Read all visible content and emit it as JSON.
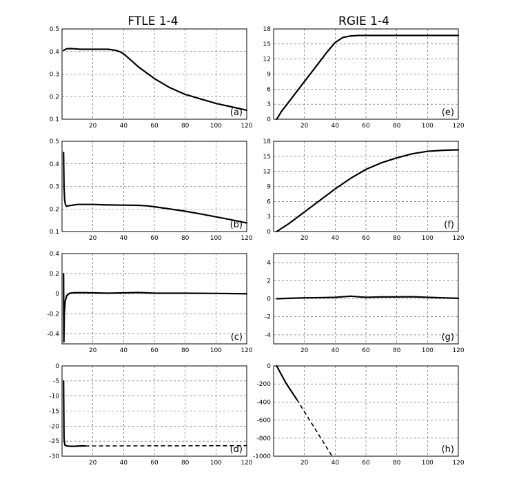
{
  "column_titles": [
    "FTLE 1-4",
    "RGIE 1-4"
  ],
  "chart_data": [
    {
      "type": "line",
      "panel_label": "(a)",
      "xlim": [
        0,
        120
      ],
      "ylim": [
        0.1,
        0.5
      ],
      "xticks": [
        20,
        40,
        60,
        80,
        100,
        120
      ],
      "yticks": [
        0.1,
        0.2,
        0.3,
        0.4,
        0.5
      ],
      "ytick_labels": [
        "0.1",
        "0.2",
        "0.3",
        "0.4",
        "0.5"
      ],
      "series": [
        {
          "x": [
            1,
            3,
            5,
            8,
            12,
            20,
            30,
            35,
            38,
            40,
            45,
            50,
            60,
            70,
            80,
            90,
            100,
            110,
            120
          ],
          "y": [
            0.405,
            0.412,
            0.413,
            0.412,
            0.41,
            0.41,
            0.41,
            0.405,
            0.398,
            0.39,
            0.36,
            0.33,
            0.28,
            0.24,
            0.21,
            0.19,
            0.17,
            0.155,
            0.14
          ]
        }
      ]
    },
    {
      "type": "line",
      "panel_label": "(e)",
      "xlim": [
        0,
        120
      ],
      "ylim": [
        0,
        18
      ],
      "xticks": [
        20,
        40,
        60,
        80,
        100,
        120
      ],
      "yticks": [
        0,
        3,
        6,
        9,
        12,
        15,
        18
      ],
      "ytick_labels": [
        "0",
        "3",
        "6",
        "9",
        "12",
        "15",
        "18"
      ],
      "series": [
        {
          "x": [
            2,
            5,
            10,
            15,
            20,
            25,
            30,
            35,
            40,
            45,
            50,
            55,
            60,
            70,
            80,
            100,
            120
          ],
          "y": [
            0,
            1.5,
            3.5,
            5.5,
            7.5,
            9.5,
            11.5,
            13.5,
            15.3,
            16.3,
            16.6,
            16.7,
            16.7,
            16.7,
            16.7,
            16.7,
            16.7
          ]
        }
      ]
    },
    {
      "type": "line",
      "panel_label": "(b)",
      "xlim": [
        0,
        120
      ],
      "ylim": [
        0.1,
        0.5
      ],
      "xticks": [
        20,
        40,
        60,
        80,
        100,
        120
      ],
      "yticks": [
        0.1,
        0.2,
        0.3,
        0.4,
        0.5
      ],
      "ytick_labels": [
        "0.1",
        "0.2",
        "0.3",
        "0.4",
        "0.5"
      ],
      "series": [
        {
          "x": [
            1,
            1.3,
            1.7,
            2.2,
            3,
            5,
            8,
            10,
            20,
            30,
            40,
            50,
            55,
            60,
            70,
            80,
            90,
            100,
            110,
            120
          ],
          "y": [
            0.45,
            0.3,
            0.24,
            0.22,
            0.212,
            0.215,
            0.218,
            0.22,
            0.22,
            0.218,
            0.217,
            0.216,
            0.214,
            0.21,
            0.2,
            0.19,
            0.178,
            0.165,
            0.152,
            0.138
          ]
        }
      ]
    },
    {
      "type": "line",
      "panel_label": "(f)",
      "xlim": [
        0,
        120
      ],
      "ylim": [
        0,
        18
      ],
      "xticks": [
        20,
        40,
        60,
        80,
        100,
        120
      ],
      "yticks": [
        0,
        3,
        6,
        9,
        12,
        15,
        18
      ],
      "ytick_labels": [
        "0",
        "3",
        "6",
        "9",
        "12",
        "15",
        "18"
      ],
      "series": [
        {
          "x": [
            2,
            10,
            20,
            30,
            40,
            50,
            60,
            70,
            80,
            90,
            100,
            110,
            120
          ],
          "y": [
            0,
            1.6,
            3.9,
            6.2,
            8.5,
            10.6,
            12.4,
            13.7,
            14.7,
            15.5,
            16,
            16.2,
            16.3
          ]
        }
      ]
    },
    {
      "type": "line",
      "panel_label": "(c)",
      "xlim": [
        0,
        120
      ],
      "ylim": [
        -0.5,
        0.4
      ],
      "xticks": [
        20,
        40,
        60,
        80,
        100,
        120
      ],
      "yticks": [
        -0.4,
        -0.2,
        0,
        0.2,
        0.4
      ],
      "ytick_labels": [
        "-0.4",
        "-0.2",
        "0",
        "0.2",
        "0.4"
      ],
      "series": [
        {
          "x": [
            1,
            1.2,
            1.5,
            2,
            3,
            5,
            8,
            15,
            30,
            50,
            60,
            80,
            100,
            120
          ],
          "y": [
            0.2,
            -0.48,
            -0.2,
            -0.08,
            -0.02,
            0.005,
            0.01,
            0.01,
            0.005,
            0.012,
            0.005,
            0.005,
            0.003,
            0
          ]
        }
      ]
    },
    {
      "type": "line",
      "panel_label": "(g)",
      "xlim": [
        0,
        120
      ],
      "ylim": [
        -5,
        5
      ],
      "xticks": [
        20,
        40,
        60,
        80,
        100,
        120
      ],
      "yticks": [
        -4,
        -2,
        0,
        2,
        4
      ],
      "ytick_labels": [
        "-4",
        "-2",
        "0",
        "2",
        "4"
      ],
      "series": [
        {
          "x": [
            2,
            10,
            20,
            30,
            40,
            50,
            60,
            70,
            80,
            90,
            100,
            110,
            120
          ],
          "y": [
            0,
            0.05,
            0.1,
            0.12,
            0.15,
            0.28,
            0.15,
            0.2,
            0.2,
            0.22,
            0.15,
            0.1,
            0.05
          ]
        }
      ]
    },
    {
      "type": "line",
      "panel_label": "(d)",
      "xlim": [
        0,
        120
      ],
      "ylim": [
        -30,
        0
      ],
      "xticks": [
        20,
        40,
        60,
        80,
        100,
        120
      ],
      "yticks": [
        -30,
        -25,
        -20,
        -15,
        -10,
        -5,
        0
      ],
      "ytick_labels": [
        "-30",
        "-25",
        "-20",
        "-15",
        "-10",
        "-5",
        "0"
      ],
      "series": [
        {
          "style": "solid",
          "x": [
            1,
            1.3,
            1.8,
            3,
            5,
            8,
            12,
            15
          ],
          "y": [
            -5,
            -24,
            -26.3,
            -26.6,
            -26.7,
            -26.7,
            -26.6,
            -26.6
          ]
        },
        {
          "style": "dashed",
          "x": [
            15,
            120
          ],
          "y": [
            -26.6,
            -26.5
          ]
        }
      ]
    },
    {
      "type": "line",
      "panel_label": "(h)",
      "xlim": [
        0,
        120
      ],
      "ylim": [
        -1000,
        0
      ],
      "xticks": [
        20,
        40,
        60,
        80,
        100,
        120
      ],
      "yticks": [
        -1000,
        -800,
        -600,
        -400,
        -200,
        0
      ],
      "ytick_labels": [
        "-1000",
        "-800",
        "-600",
        "-400",
        "-200",
        "0"
      ],
      "series": [
        {
          "style": "solid",
          "x": [
            2,
            8,
            15
          ],
          "y": [
            0,
            -190,
            -370
          ]
        },
        {
          "style": "dashed",
          "x": [
            15,
            38
          ],
          "y": [
            -370,
            -1000
          ]
        }
      ]
    }
  ]
}
